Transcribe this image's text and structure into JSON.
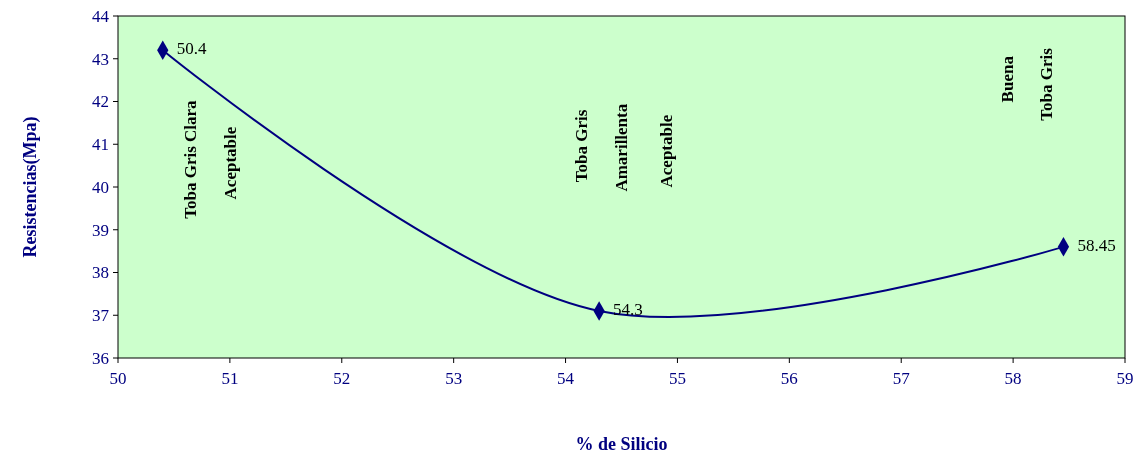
{
  "chart_data": {
    "type": "line",
    "xlabel": "% de Silicio",
    "ylabel": "Resistencias(Mpa)",
    "x": [
      50.4,
      54.3,
      58.45
    ],
    "series": [
      {
        "color": "#000080",
        "values": [
          43.2,
          37.1,
          38.6
        ]
      }
    ],
    "xlim": [
      50,
      59
    ],
    "xticks": [
      50,
      51,
      52,
      53,
      54,
      55,
      56,
      57,
      58,
      59
    ],
    "ylim": [
      36,
      44
    ],
    "yticks": [
      36,
      37,
      38,
      39,
      40,
      41,
      42,
      43,
      44
    ],
    "marker": "diamond",
    "line_style": "solid",
    "grid": false,
    "legend": false,
    "annotations": [
      {
        "text": "50.4",
        "x": 50.4,
        "y": 43.2
      },
      {
        "text": "54.3",
        "x": 54.3,
        "y": 37.1
      },
      {
        "text": "58.45",
        "x": 58.45,
        "y": 38.6
      },
      "Toba Gris Clara",
      "Aceptable",
      "Toba Gris",
      "Amarillenta",
      "Aceptable",
      "Buena",
      "Toba Gris"
    ]
  }
}
